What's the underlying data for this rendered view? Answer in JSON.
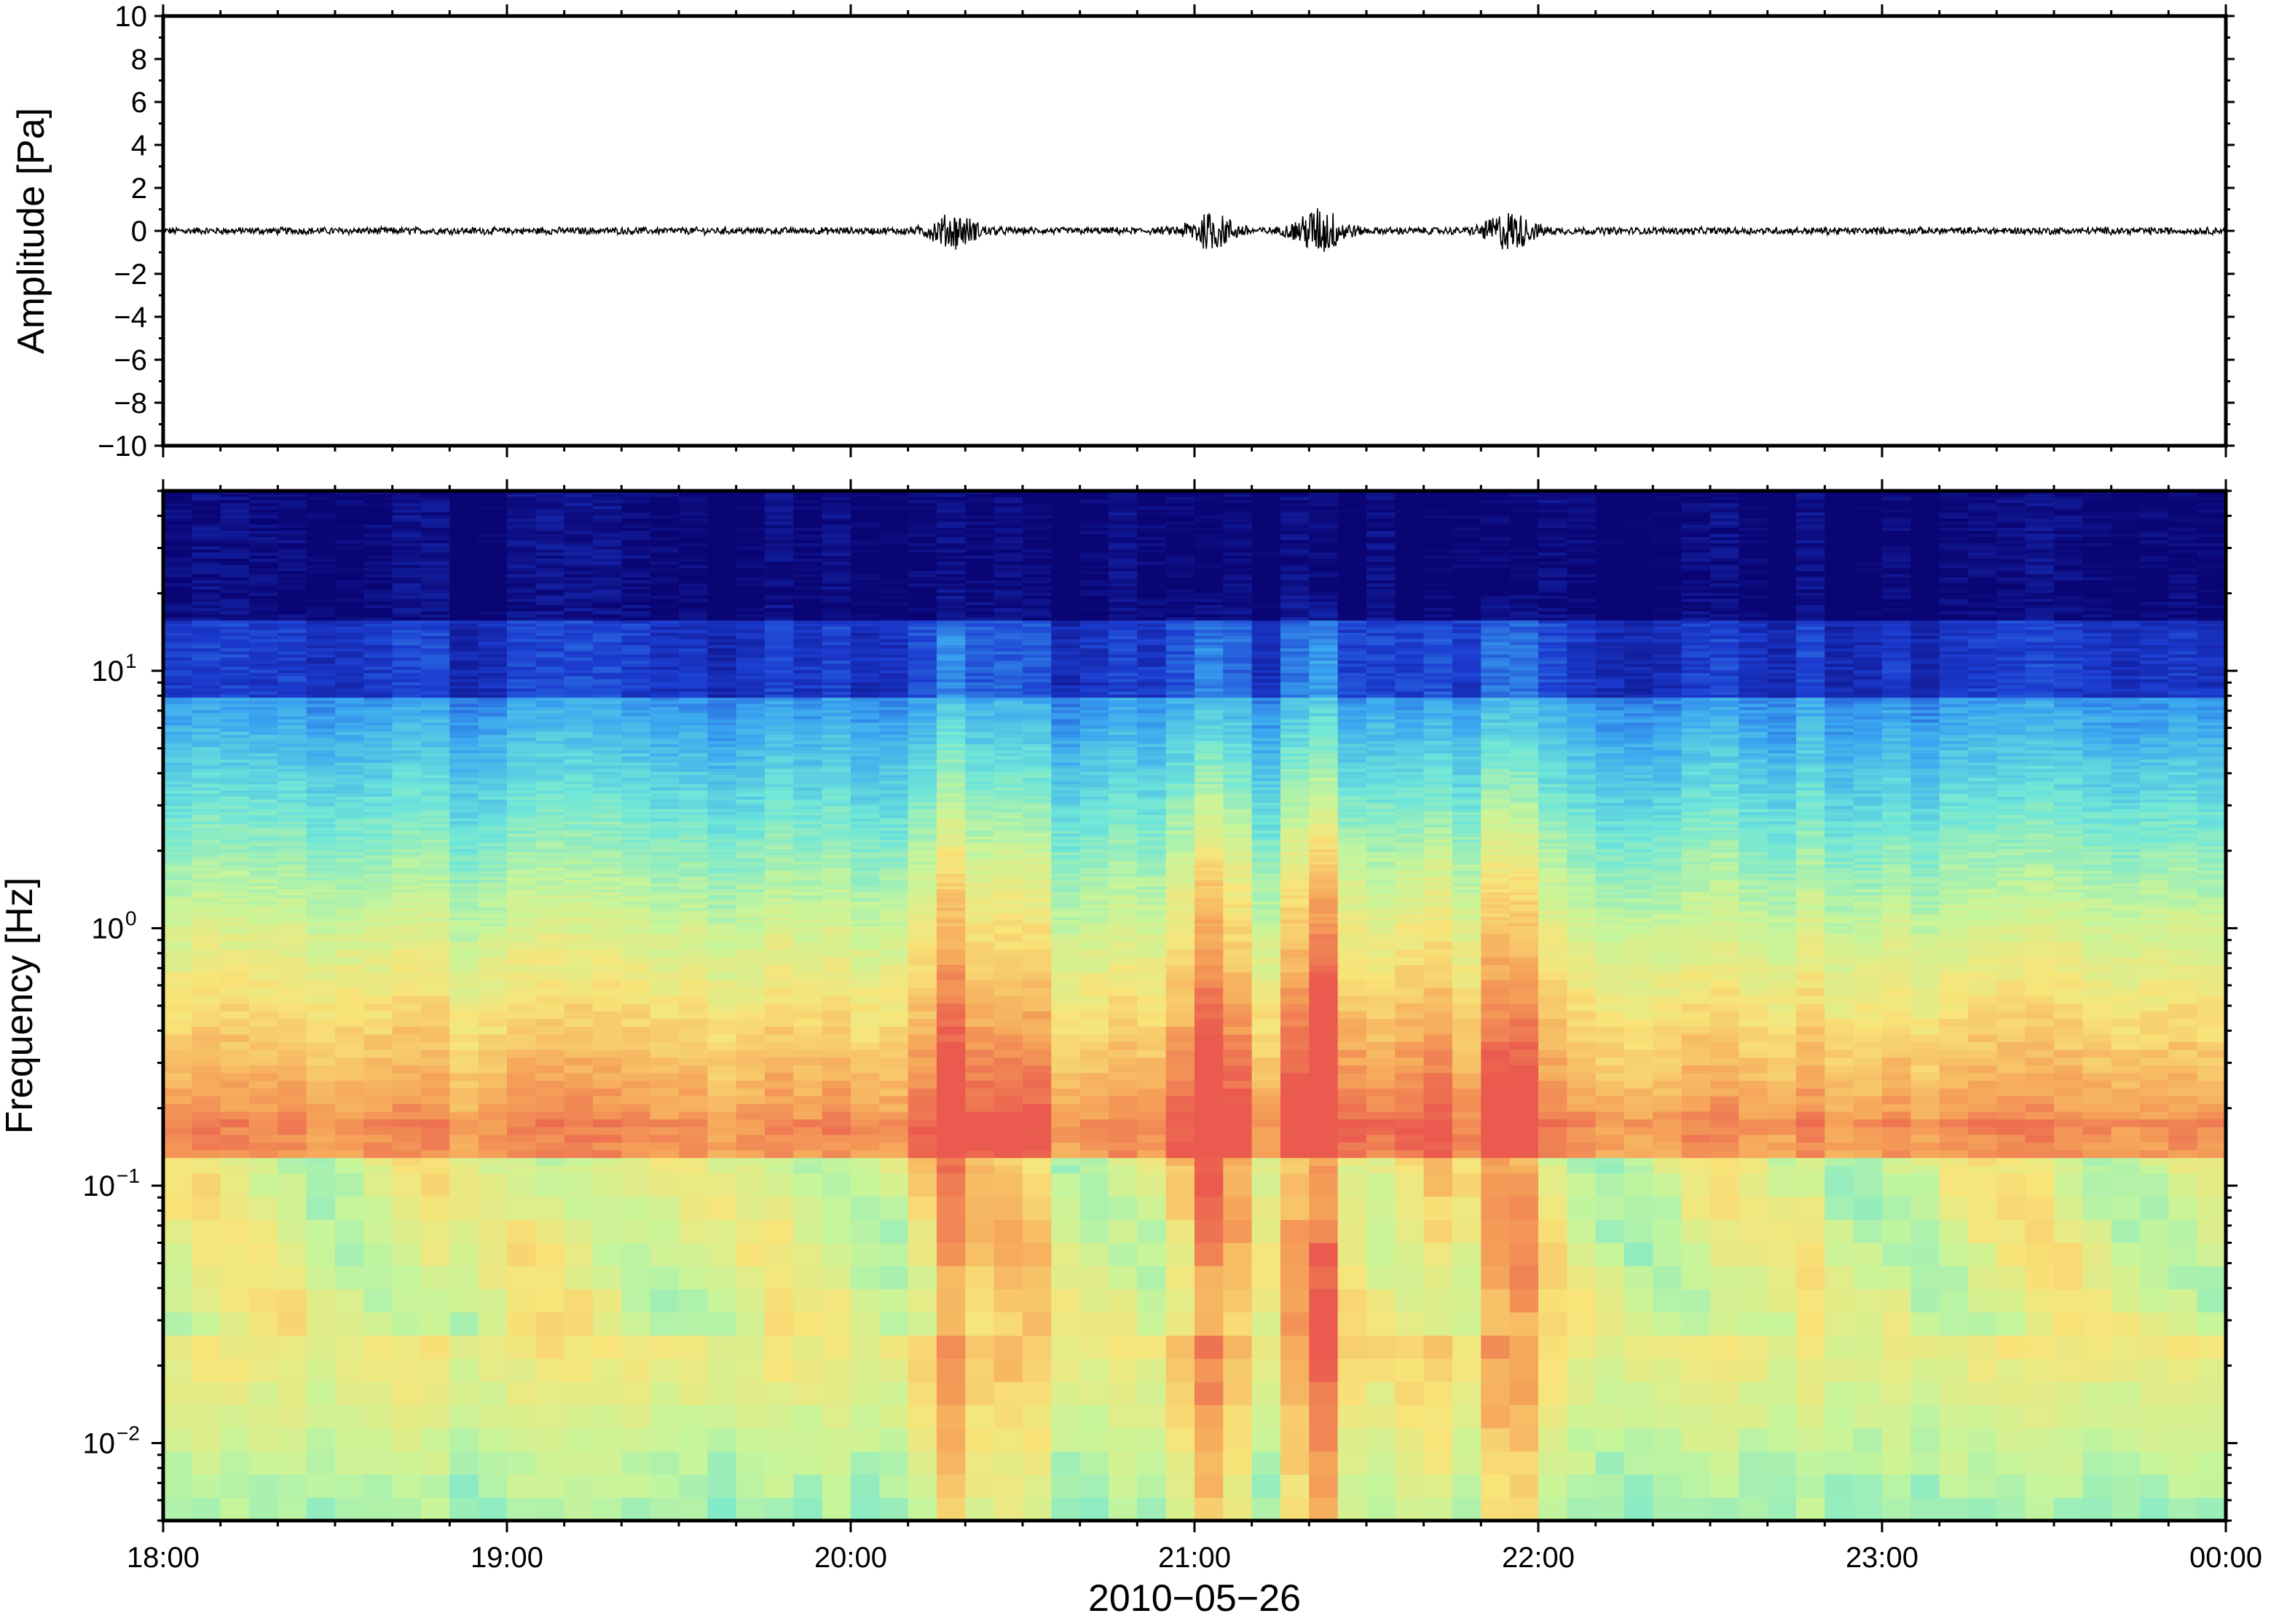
{
  "chart_data": [
    {
      "type": "line",
      "ylabel": "Amplitude [Pa]",
      "xlabel": "",
      "ylim": [
        -10,
        10
      ],
      "yticks": [
        10,
        8,
        6,
        4,
        2,
        0,
        -2,
        -4,
        -6,
        -8,
        -10
      ],
      "ytick_labels": [
        "10",
        "8",
        "6",
        "4",
        "2",
        "0",
        "−2",
        "−4",
        "−6",
        "−8",
        "−10"
      ],
      "xlim_hours": [
        18,
        24
      ],
      "series": [
        {
          "baseline": 0,
          "noise_amplitude": 0.15,
          "bursts": [
            {
              "time": "20:18",
              "amplitude": 0.7
            },
            {
              "time": "21:03",
              "amplitude": 0.75
            },
            {
              "time": "21:22",
              "amplitude": 1.0
            },
            {
              "time": "21:55",
              "amplitude": 0.8
            }
          ]
        }
      ],
      "line_color": "#000000"
    },
    {
      "type": "heatmap",
      "ylabel": "Frequency [Hz]",
      "xlabel": "2010−05−26",
      "yscale": "log",
      "ylim_hz": [
        0.005,
        50
      ],
      "yticks_hz": [
        10,
        1,
        0.1,
        0.01
      ],
      "ytick_labels": [
        {
          "base": "10",
          "exp": "1"
        },
        {
          "base": "10",
          "exp": "0"
        },
        {
          "base": "10",
          "exp": "−1"
        },
        {
          "base": "10",
          "exp": "−2"
        }
      ],
      "xtick_labels": [
        "18:00",
        "19:00",
        "20:00",
        "21:00",
        "22:00",
        "23:00",
        "00:00"
      ],
      "xlim_hours": [
        18,
        24
      ],
      "colormap": [
        "#0a0574",
        "#1c3dd1",
        "#3aa6f0",
        "#6ee6d9",
        "#c7f59a",
        "#f8e479",
        "#f6a85a",
        "#ea5a4e"
      ],
      "background_color": "#0a0574",
      "microbarom_peak_hz": 0.2,
      "event_columns": [
        {
          "time": "20:18",
          "strength": 0.7
        },
        {
          "time": "20:30",
          "strength": 0.45
        },
        {
          "time": "21:03",
          "strength": 0.9
        },
        {
          "time": "21:22",
          "strength": 1.0
        },
        {
          "time": "21:40",
          "strength": 0.5
        },
        {
          "time": "21:55",
          "strength": 0.8
        }
      ]
    }
  ]
}
